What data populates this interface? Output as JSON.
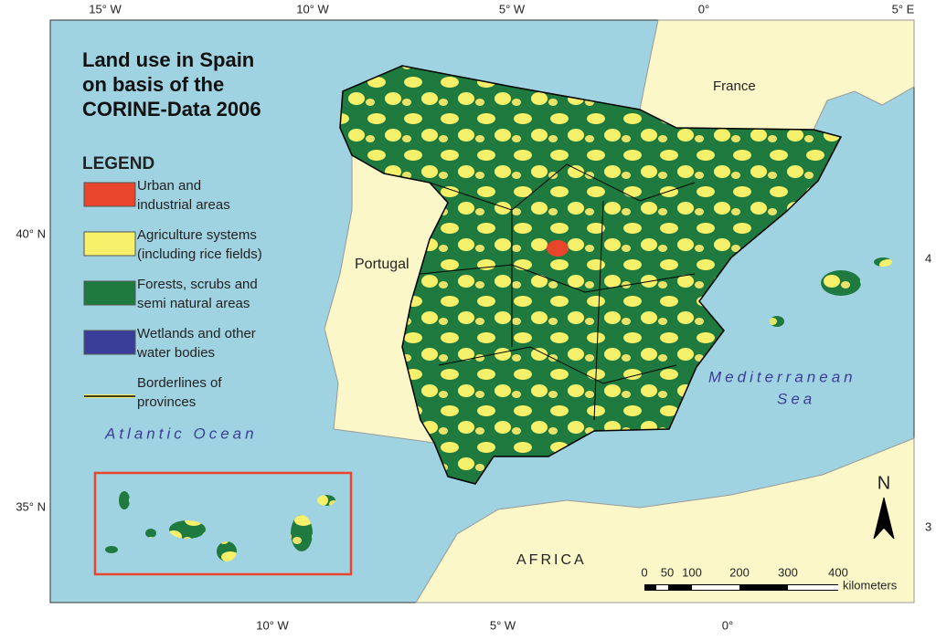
{
  "title": [
    "Land use in Spain",
    "on basis of the",
    "CORINE-Data 2006"
  ],
  "legend": {
    "heading": "LEGEND",
    "items": [
      {
        "lines": [
          "Urban and",
          "industrial areas"
        ],
        "color": "#e8452c"
      },
      {
        "lines": [
          "Agriculture systems",
          "(including rice fields)"
        ],
        "color": "#f7f06a"
      },
      {
        "lines": [
          "Forests, scrubs and",
          "semi natural areas"
        ],
        "color": "#1f7a40"
      },
      {
        "lines": [
          "Wetlands and other",
          "water bodies"
        ],
        "color": "#3b3e99"
      },
      {
        "lines": [
          "Borderlines of",
          "provinces"
        ],
        "color": "#000000"
      }
    ]
  },
  "labels": {
    "france": "France",
    "portugal": "Portugal",
    "atlantic": "Atlantic Ocean",
    "mediterranean": [
      "Mediterranean",
      "Sea"
    ],
    "africa": "AFRICA",
    "north": "N"
  },
  "graticule": {
    "top": [
      "15° W",
      "10° W",
      "5° W",
      "0°",
      "5° E"
    ],
    "bottom": [
      "10° W",
      "5° W",
      "0°"
    ],
    "left": [
      "40° N",
      "35° N"
    ],
    "right": [
      "4",
      "3"
    ]
  },
  "scale": {
    "labels": [
      "0",
      "50",
      "100",
      "200",
      "300",
      "400"
    ],
    "unit": "kilometers"
  }
}
